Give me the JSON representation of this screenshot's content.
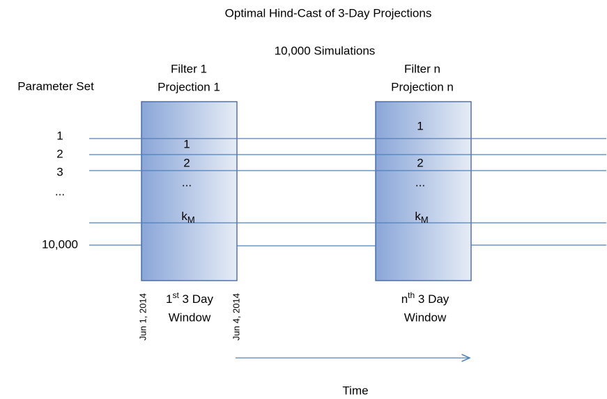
{
  "title": "Optimal Hind-Cast of 3-Day Projections",
  "subtitle": "10,000 Simulations",
  "parameter_set": {
    "label": "Parameter Set",
    "items": [
      "1",
      "2",
      "3",
      "...",
      "10,000"
    ]
  },
  "filters": [
    {
      "name": "Filter 1",
      "projection": "Projection 1",
      "items": [
        "1",
        "2",
        "..."
      ],
      "k": {
        "base": "k",
        "sub": "M"
      },
      "window": {
        "ordinal": "1",
        "suffix": "st",
        "text": " 3 Day",
        "line2": "Window"
      }
    },
    {
      "name": "Filter n",
      "projection": "Projection n",
      "items": [
        "1",
        "2",
        "..."
      ],
      "k": {
        "base": "k",
        "sub": "M"
      },
      "window": {
        "ordinal": "n",
        "suffix": "th",
        "text": " 3 Day",
        "line2": "Window"
      }
    }
  ],
  "dates": [
    "Jun 1, 2014",
    "Jun 4, 2014"
  ],
  "axis_label": "Time"
}
